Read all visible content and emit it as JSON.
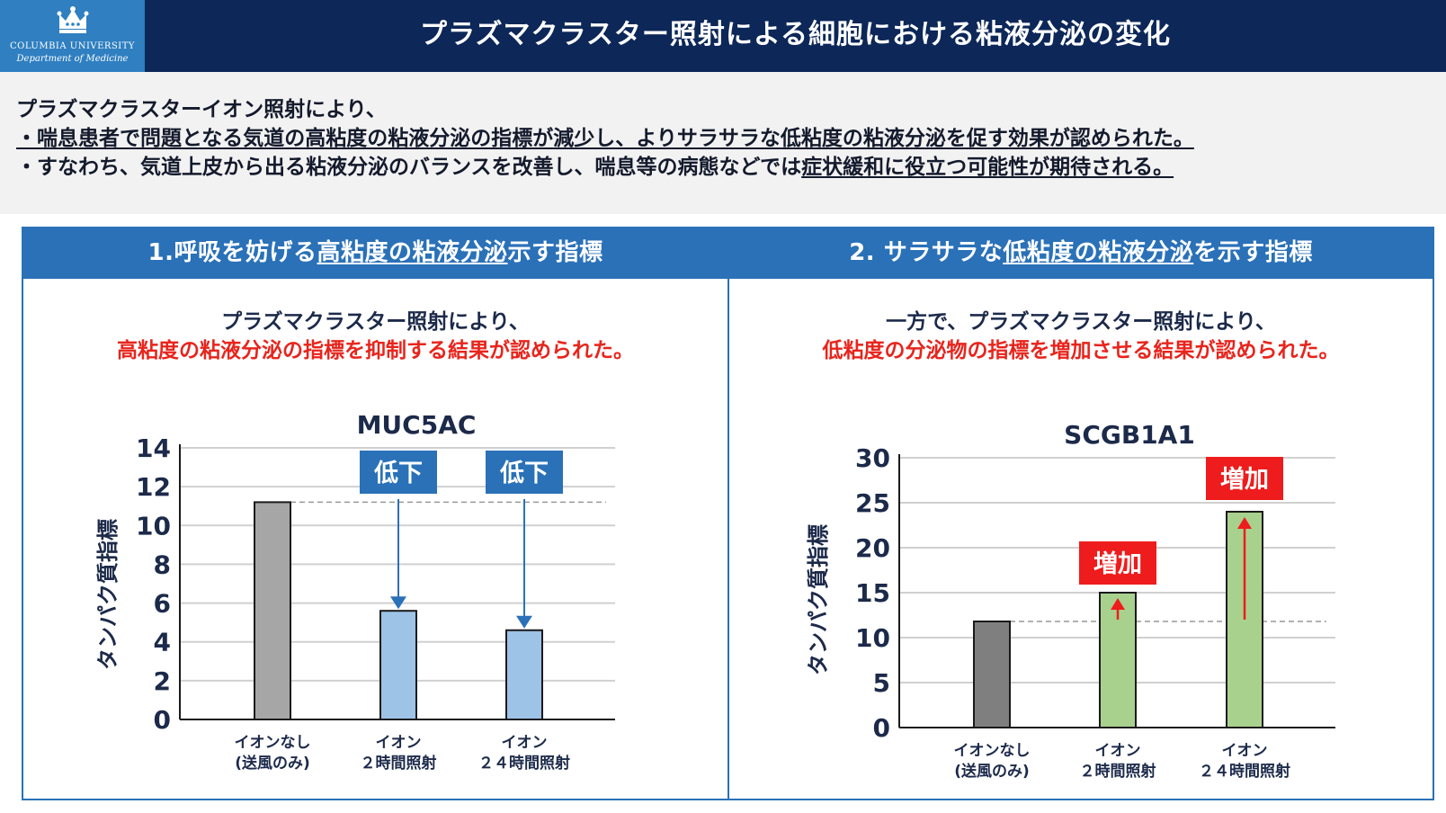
{
  "header": {
    "logo_line1": "COLUMBIA UNIVERSITY",
    "logo_line2": "Department of Medicine",
    "title": "プラズマクラスター照射による細胞における粘液分泌の変化"
  },
  "intro": {
    "line1": "プラズマクラスターイオン照射により、",
    "line2": "・喘息患者で問題となる気道の高粘度の粘液分泌の指標が減少し、よりサラサラな低粘度の粘液分泌を促す効果が認められた。",
    "line3_a": "・すなわち、気道上皮から出る粘液分泌のバランスを改善し、喘息等の病態などでは",
    "line3_b": "症状緩和に役立つ可能性が期待される。"
  },
  "panel1": {
    "header_a": "1.呼吸を妨げる",
    "header_b": "高粘度の粘液分泌",
    "header_c": "示す指標",
    "desc_line1": "プラズマクラスター照射により、",
    "desc_line2": "高粘度の粘液分泌の指標を抑制する結果が認められた。"
  },
  "panel2": {
    "header_a": "2. サラサラな",
    "header_b": "低粘度の粘液分泌",
    "header_c": "を示す指標",
    "desc_line1": "一方で、プラズマクラスター照射により、",
    "desc_line2": "低粘度の分泌物の指標を増加させる結果が認められた。"
  },
  "chart_data": [
    {
      "type": "bar",
      "title": "MUC5AC",
      "ylabel": "タンパク質指標",
      "xlabel": "",
      "categories": [
        [
          "イオンなし",
          "(送風のみ)"
        ],
        [
          "イオン",
          "２時間照射"
        ],
        [
          "イオン",
          "２４時間照射"
        ]
      ],
      "values": [
        11.2,
        5.6,
        4.6
      ],
      "colors": [
        "#a6a6a6",
        "#9dc3e6",
        "#9dc3e6"
      ],
      "ylim": [
        0,
        14
      ],
      "yticks": [
        0,
        2,
        4,
        6,
        8,
        10,
        12,
        14
      ],
      "grid": true,
      "annotations": [
        "低下",
        "低下"
      ],
      "annotation_color": "#2a71b8",
      "reference_value": 11.2
    },
    {
      "type": "bar",
      "title": "SCGB1A1",
      "ylabel": "タンパク質指標",
      "xlabel": "",
      "categories": [
        [
          "イオンなし",
          "(送風のみ)"
        ],
        [
          "イオン",
          "２時間照射"
        ],
        [
          "イオン",
          "２４時間照射"
        ]
      ],
      "values": [
        11.8,
        15.0,
        24.0
      ],
      "colors": [
        "#7f7f7f",
        "#a9d18e",
        "#a9d18e"
      ],
      "ylim": [
        0,
        30
      ],
      "yticks": [
        0,
        5,
        10,
        15,
        20,
        25,
        30
      ],
      "grid": true,
      "annotations": [
        "増加",
        "増加"
      ],
      "annotation_color": "#ee1c1c",
      "reference_value": 11.8
    }
  ]
}
